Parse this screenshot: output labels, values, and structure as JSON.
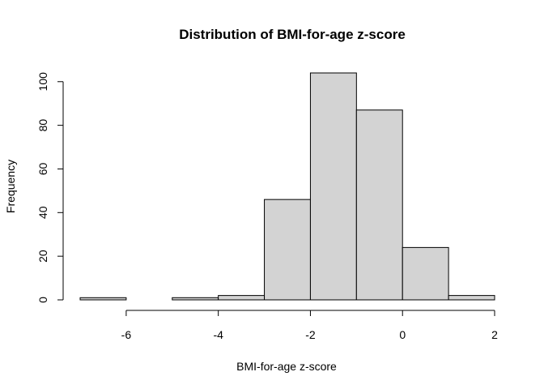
{
  "chart_data": {
    "type": "bar",
    "title": "Distribution of BMI-for-age z-score",
    "xlabel": "BMI-for-age z-score",
    "ylabel": "Frequency",
    "bins": [
      {
        "start": -7,
        "end": -6,
        "count": 1
      },
      {
        "start": -6,
        "end": -5,
        "count": 0
      },
      {
        "start": -5,
        "end": -4,
        "count": 1
      },
      {
        "start": -4,
        "end": -3,
        "count": 2
      },
      {
        "start": -3,
        "end": -2,
        "count": 46
      },
      {
        "start": -2,
        "end": -1,
        "count": 104
      },
      {
        "start": -1,
        "end": 0,
        "count": 87
      },
      {
        "start": 0,
        "end": 1,
        "count": 24
      },
      {
        "start": 1,
        "end": 2,
        "count": 2
      }
    ],
    "xlim": [
      -7,
      2
    ],
    "ylim": [
      0,
      104
    ],
    "x_ticks": [
      "-6",
      "-4",
      "-2",
      "0",
      "2"
    ],
    "y_ticks": [
      "0",
      "20",
      "40",
      "60",
      "80",
      "100"
    ],
    "bar_fill": "#d3d3d3",
    "bar_stroke": "#000000",
    "grid": false,
    "legend": "none"
  }
}
